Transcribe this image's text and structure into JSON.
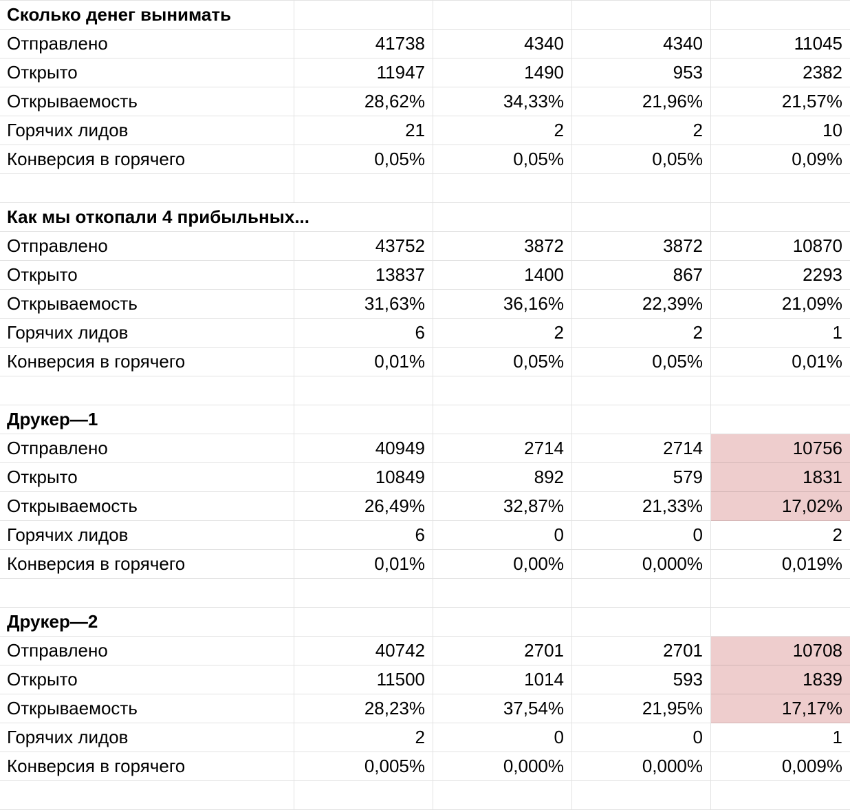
{
  "app": {
    "description": "Email campaign metrics spreadsheet"
  },
  "colors": {
    "highlight": "#eecdcd",
    "gridline": "#e1e1e1",
    "text": "#000000",
    "background": "#ffffff"
  },
  "sections": [
    {
      "title": "Сколько денег вынимать",
      "title_overflows": false,
      "rows": [
        {
          "label": "Отправлено",
          "values": [
            "41738",
            "4340",
            "4340",
            "11045"
          ],
          "highlight_last": false
        },
        {
          "label": "Открыто",
          "values": [
            "11947",
            "1490",
            "953",
            "2382"
          ],
          "highlight_last": false
        },
        {
          "label": "Открываемость",
          "values": [
            "28,62%",
            "34,33%",
            "21,96%",
            "21,57%"
          ],
          "highlight_last": false
        },
        {
          "label": "Горячих лидов",
          "values": [
            "21",
            "2",
            "2",
            "10"
          ],
          "highlight_last": false
        },
        {
          "label": "Конверсия в горячего",
          "values": [
            "0,05%",
            "0,05%",
            "0,05%",
            "0,09%"
          ],
          "highlight_last": false
        }
      ]
    },
    {
      "title": "Как мы откопали 4 прибыльных...",
      "title_overflows": true,
      "rows": [
        {
          "label": "Отправлено",
          "values": [
            "43752",
            "3872",
            "3872",
            "10870"
          ],
          "highlight_last": false
        },
        {
          "label": "Открыто",
          "values": [
            "13837",
            "1400",
            "867",
            "2293"
          ],
          "highlight_last": false
        },
        {
          "label": "Открываемость",
          "values": [
            "31,63%",
            "36,16%",
            "22,39%",
            "21,09%"
          ],
          "highlight_last": false
        },
        {
          "label": "Горячих лидов",
          "values": [
            "6",
            "2",
            "2",
            "1"
          ],
          "highlight_last": false
        },
        {
          "label": "Конверсия в горячего",
          "values": [
            "0,01%",
            "0,05%",
            "0,05%",
            "0,01%"
          ],
          "highlight_last": false
        }
      ]
    },
    {
      "title": "Друкер—1",
      "title_overflows": false,
      "rows": [
        {
          "label": "Отправлено",
          "values": [
            "40949",
            "2714",
            "2714",
            "10756"
          ],
          "highlight_last": true
        },
        {
          "label": "Открыто",
          "values": [
            "10849",
            "892",
            "579",
            "1831"
          ],
          "highlight_last": true
        },
        {
          "label": "Открываемость",
          "values": [
            "26,49%",
            "32,87%",
            "21,33%",
            "17,02%"
          ],
          "highlight_last": true
        },
        {
          "label": "Горячих лидов",
          "values": [
            "6",
            "0",
            "0",
            "2"
          ],
          "highlight_last": false
        },
        {
          "label": "Конверсия в горячего",
          "values": [
            "0,01%",
            "0,00%",
            "0,000%",
            "0,019%"
          ],
          "highlight_last": false
        }
      ]
    },
    {
      "title": "Друкер—2",
      "title_overflows": false,
      "rows": [
        {
          "label": "Отправлено",
          "values": [
            "40742",
            "2701",
            "2701",
            "10708"
          ],
          "highlight_last": true
        },
        {
          "label": "Открыто",
          "values": [
            "11500",
            "1014",
            "593",
            "1839"
          ],
          "highlight_last": true
        },
        {
          "label": "Открываемость",
          "values": [
            "28,23%",
            "37,54%",
            "21,95%",
            "17,17%"
          ],
          "highlight_last": true
        },
        {
          "label": "Горячих лидов",
          "values": [
            "2",
            "0",
            "0",
            "1"
          ],
          "highlight_last": false
        },
        {
          "label": "Конверсия в горячего",
          "values": [
            "0,005%",
            "0,000%",
            "0,000%",
            "0,009%"
          ],
          "highlight_last": false
        }
      ]
    }
  ]
}
